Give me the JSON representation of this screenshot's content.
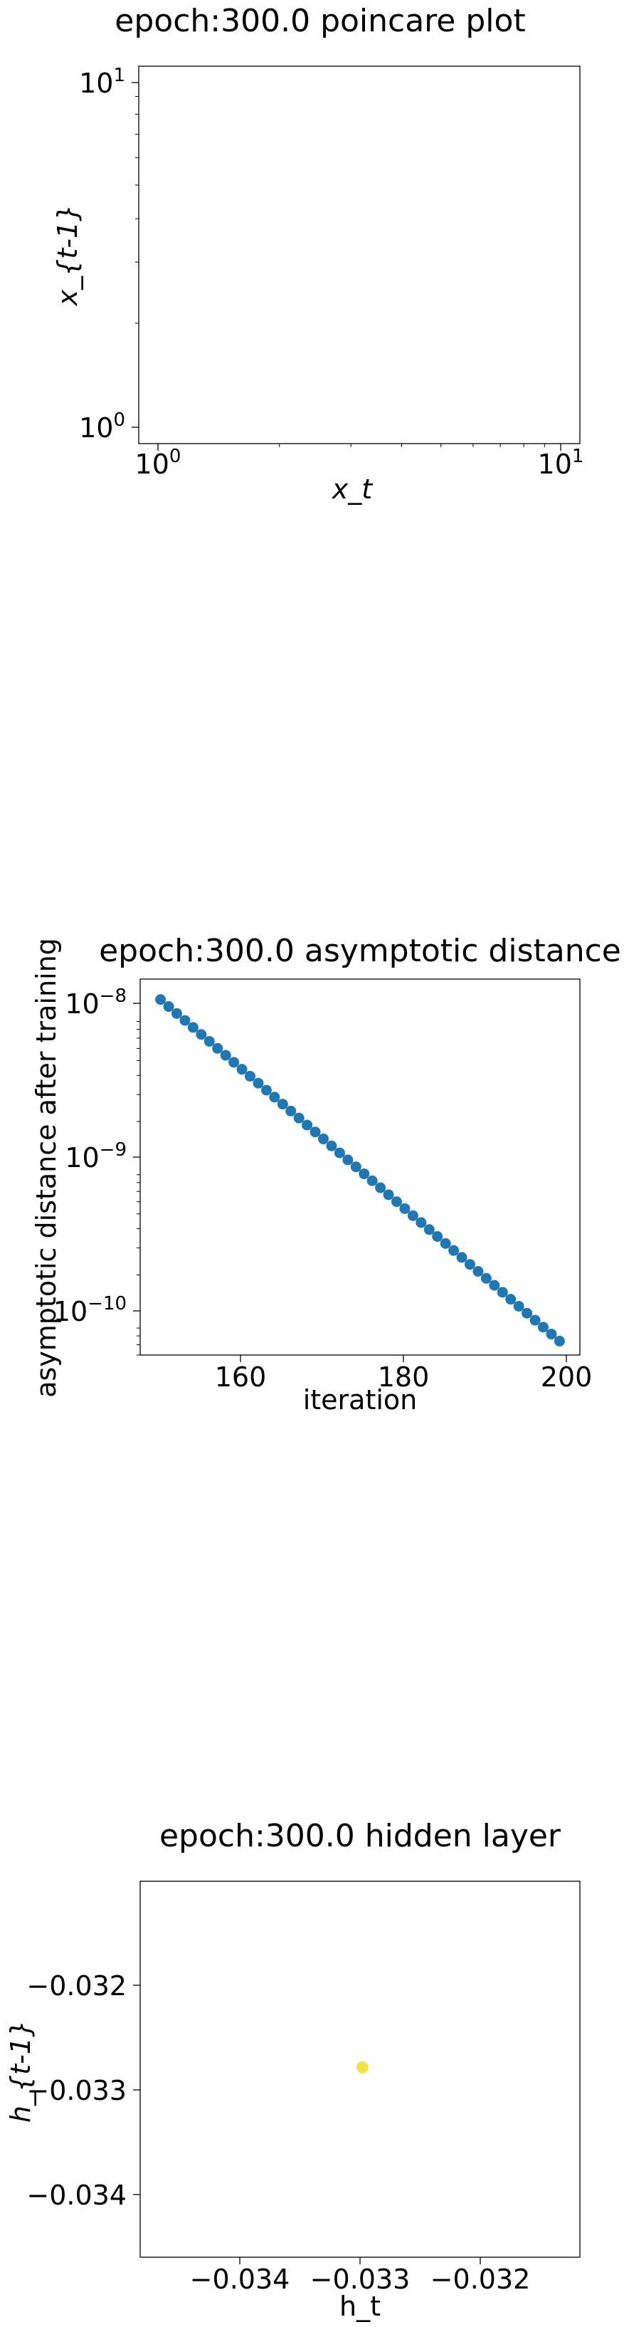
{
  "chart_data": [
    {
      "type": "scatter",
      "title": "epoch:300.0 poincare plot",
      "xlabel": "x_t",
      "ylabel": "x_{t-1}",
      "xscale": "log",
      "yscale": "log",
      "xlim": [
        0.9,
        11
      ],
      "ylim": [
        0.9,
        11
      ],
      "xticks": [
        {
          "base": "10",
          "exp": "0",
          "value": 1
        },
        {
          "base": "10",
          "exp": "1",
          "value": 10
        }
      ],
      "yticks": [
        {
          "base": "10",
          "exp": "0",
          "value": 1
        },
        {
          "base": "10",
          "exp": "1",
          "value": 10
        }
      ],
      "x": [],
      "y": [],
      "grid": false
    },
    {
      "type": "scatter",
      "title": "epoch:300.0 asymptotic distance",
      "xlabel": "iteration",
      "ylabel": "asymptotic distance after training",
      "yscale": "log",
      "xlim": [
        147.5,
        201.5
      ],
      "ylim": [
        6e-11,
        1.7e-08
      ],
      "xticks": [
        160,
        180,
        200
      ],
      "yticks": [
        {
          "base": "10",
          "exp": "−8",
          "value": 1e-08
        },
        {
          "base": "10",
          "exp": "−9",
          "value": 1e-09
        },
        {
          "base": "10",
          "exp": "−10",
          "value": 1e-10
        }
      ],
      "x_start": 150,
      "x_end": 199,
      "y_start": 1.25e-08,
      "y_end": 7.4e-11,
      "marker_color": "#1f77b4",
      "grid": false
    },
    {
      "type": "scatter",
      "title": "epoch:300.0 hidden layer",
      "xlabel": "h_t",
      "ylabel": "h_{t-1}",
      "xlim": [
        -0.0347,
        -0.0311
      ],
      "ylim": [
        -0.0347,
        -0.0311
      ],
      "xticks": [
        "−0.034",
        "−0.033",
        "−0.032"
      ],
      "xtick_values": [
        -0.034,
        -0.033,
        -0.032
      ],
      "yticks": [
        "−0.032",
        "−0.033",
        "−0.034"
      ],
      "ytick_values": [
        -0.032,
        -0.033,
        -0.034
      ],
      "x": [
        -0.03288
      ],
      "y": [
        -0.03288
      ],
      "marker_color": "#f0e442",
      "grid": false
    }
  ]
}
